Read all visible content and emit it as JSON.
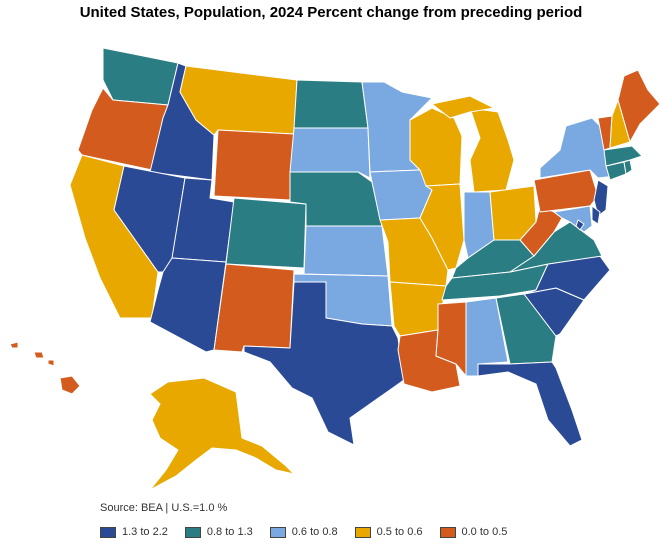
{
  "title": "United States, Population, 2024 Percent change from preceding period",
  "source": "Source: BEA | U.S.=1.0 %",
  "colors": {
    "c1": "#2a4a96",
    "c2": "#2a7d82",
    "c3": "#7aa8e0",
    "c4": "#e8a800",
    "c5": "#d45b1e"
  },
  "legend": [
    {
      "label": "1.3 to 2.2",
      "color": "#2a4a96"
    },
    {
      "label": "0.8 to 1.3",
      "color": "#2a7d82"
    },
    {
      "label": "0.6 to 0.8",
      "color": "#7aa8e0"
    },
    {
      "label": "0.5 to 0.6",
      "color": "#e8a800"
    },
    {
      "label": "0.0 to 0.5",
      "color": "#d45b1e"
    }
  ],
  "states": [
    {
      "name": "WA",
      "bin": "0.8 to 1.3",
      "color": "#2a7d82"
    },
    {
      "name": "OR",
      "bin": "0.0 to 0.5",
      "color": "#d45b1e"
    },
    {
      "name": "CA",
      "bin": "0.5 to 0.6",
      "color": "#e8a800"
    },
    {
      "name": "ID",
      "bin": "1.3 to 2.2",
      "color": "#2a4a96"
    },
    {
      "name": "NV",
      "bin": "1.3 to 2.2",
      "color": "#2a4a96"
    },
    {
      "name": "UT",
      "bin": "1.3 to 2.2",
      "color": "#2a4a96"
    },
    {
      "name": "AZ",
      "bin": "1.3 to 2.2",
      "color": "#2a4a96"
    },
    {
      "name": "MT",
      "bin": "0.5 to 0.6",
      "color": "#e8a800"
    },
    {
      "name": "WY",
      "bin": "0.0 to 0.5",
      "color": "#d45b1e"
    },
    {
      "name": "CO",
      "bin": "0.8 to 1.3",
      "color": "#2a7d82"
    },
    {
      "name": "NM",
      "bin": "0.0 to 0.5",
      "color": "#d45b1e"
    },
    {
      "name": "ND",
      "bin": "0.8 to 1.3",
      "color": "#2a7d82"
    },
    {
      "name": "SD",
      "bin": "0.6 to 0.8",
      "color": "#7aa8e0"
    },
    {
      "name": "NE",
      "bin": "0.8 to 1.3",
      "color": "#2a7d82"
    },
    {
      "name": "KS",
      "bin": "0.6 to 0.8",
      "color": "#7aa8e0"
    },
    {
      "name": "OK",
      "bin": "0.6 to 0.8",
      "color": "#7aa8e0"
    },
    {
      "name": "TX",
      "bin": "1.3 to 2.2",
      "color": "#2a4a96"
    },
    {
      "name": "MN",
      "bin": "0.6 to 0.8",
      "color": "#7aa8e0"
    },
    {
      "name": "IA",
      "bin": "0.6 to 0.8",
      "color": "#7aa8e0"
    },
    {
      "name": "MO",
      "bin": "0.5 to 0.6",
      "color": "#e8a800"
    },
    {
      "name": "AR",
      "bin": "0.5 to 0.6",
      "color": "#e8a800"
    },
    {
      "name": "LA",
      "bin": "0.0 to 0.5",
      "color": "#d45b1e"
    },
    {
      "name": "WI",
      "bin": "0.5 to 0.6",
      "color": "#e8a800"
    },
    {
      "name": "IL",
      "bin": "0.5 to 0.6",
      "color": "#e8a800"
    },
    {
      "name": "MI",
      "bin": "0.5 to 0.6",
      "color": "#e8a800"
    },
    {
      "name": "IN",
      "bin": "0.6 to 0.8",
      "color": "#7aa8e0"
    },
    {
      "name": "OH",
      "bin": "0.5 to 0.6",
      "color": "#e8a800"
    },
    {
      "name": "KY",
      "bin": "0.8 to 1.3",
      "color": "#2a7d82"
    },
    {
      "name": "TN",
      "bin": "0.8 to 1.3",
      "color": "#2a7d82"
    },
    {
      "name": "MS",
      "bin": "0.0 to 0.5",
      "color": "#d45b1e"
    },
    {
      "name": "AL",
      "bin": "0.6 to 0.8",
      "color": "#7aa8e0"
    },
    {
      "name": "GA",
      "bin": "0.8 to 1.3",
      "color": "#2a7d82"
    },
    {
      "name": "FL",
      "bin": "1.3 to 2.2",
      "color": "#2a4a96"
    },
    {
      "name": "SC",
      "bin": "1.3 to 2.2",
      "color": "#2a4a96"
    },
    {
      "name": "NC",
      "bin": "1.3 to 2.2",
      "color": "#2a4a96"
    },
    {
      "name": "VA",
      "bin": "0.8 to 1.3",
      "color": "#2a7d82"
    },
    {
      "name": "WV",
      "bin": "0.0 to 0.5",
      "color": "#d45b1e"
    },
    {
      "name": "PA",
      "bin": "0.0 to 0.5",
      "color": "#d45b1e"
    },
    {
      "name": "NY",
      "bin": "0.6 to 0.8",
      "color": "#7aa8e0"
    },
    {
      "name": "NJ",
      "bin": "1.3 to 2.2",
      "color": "#2a4a96"
    },
    {
      "name": "DE",
      "bin": "1.3 to 2.2",
      "color": "#2a4a96"
    },
    {
      "name": "MD",
      "bin": "0.6 to 0.8",
      "color": "#7aa8e0"
    },
    {
      "name": "DC",
      "bin": "1.3 to 2.2",
      "color": "#2a4a96"
    },
    {
      "name": "CT",
      "bin": "0.8 to 1.3",
      "color": "#2a7d82"
    },
    {
      "name": "RI",
      "bin": "0.8 to 1.3",
      "color": "#2a7d82"
    },
    {
      "name": "MA",
      "bin": "0.8 to 1.3",
      "color": "#2a7d82"
    },
    {
      "name": "VT",
      "bin": "0.0 to 0.5",
      "color": "#d45b1e"
    },
    {
      "name": "NH",
      "bin": "0.5 to 0.6",
      "color": "#e8a800"
    },
    {
      "name": "ME",
      "bin": "0.0 to 0.5",
      "color": "#d45b1e"
    },
    {
      "name": "AK",
      "bin": "0.5 to 0.6",
      "color": "#e8a800"
    },
    {
      "name": "HI",
      "bin": "0.0 to 0.5",
      "color": "#d45b1e"
    }
  ]
}
